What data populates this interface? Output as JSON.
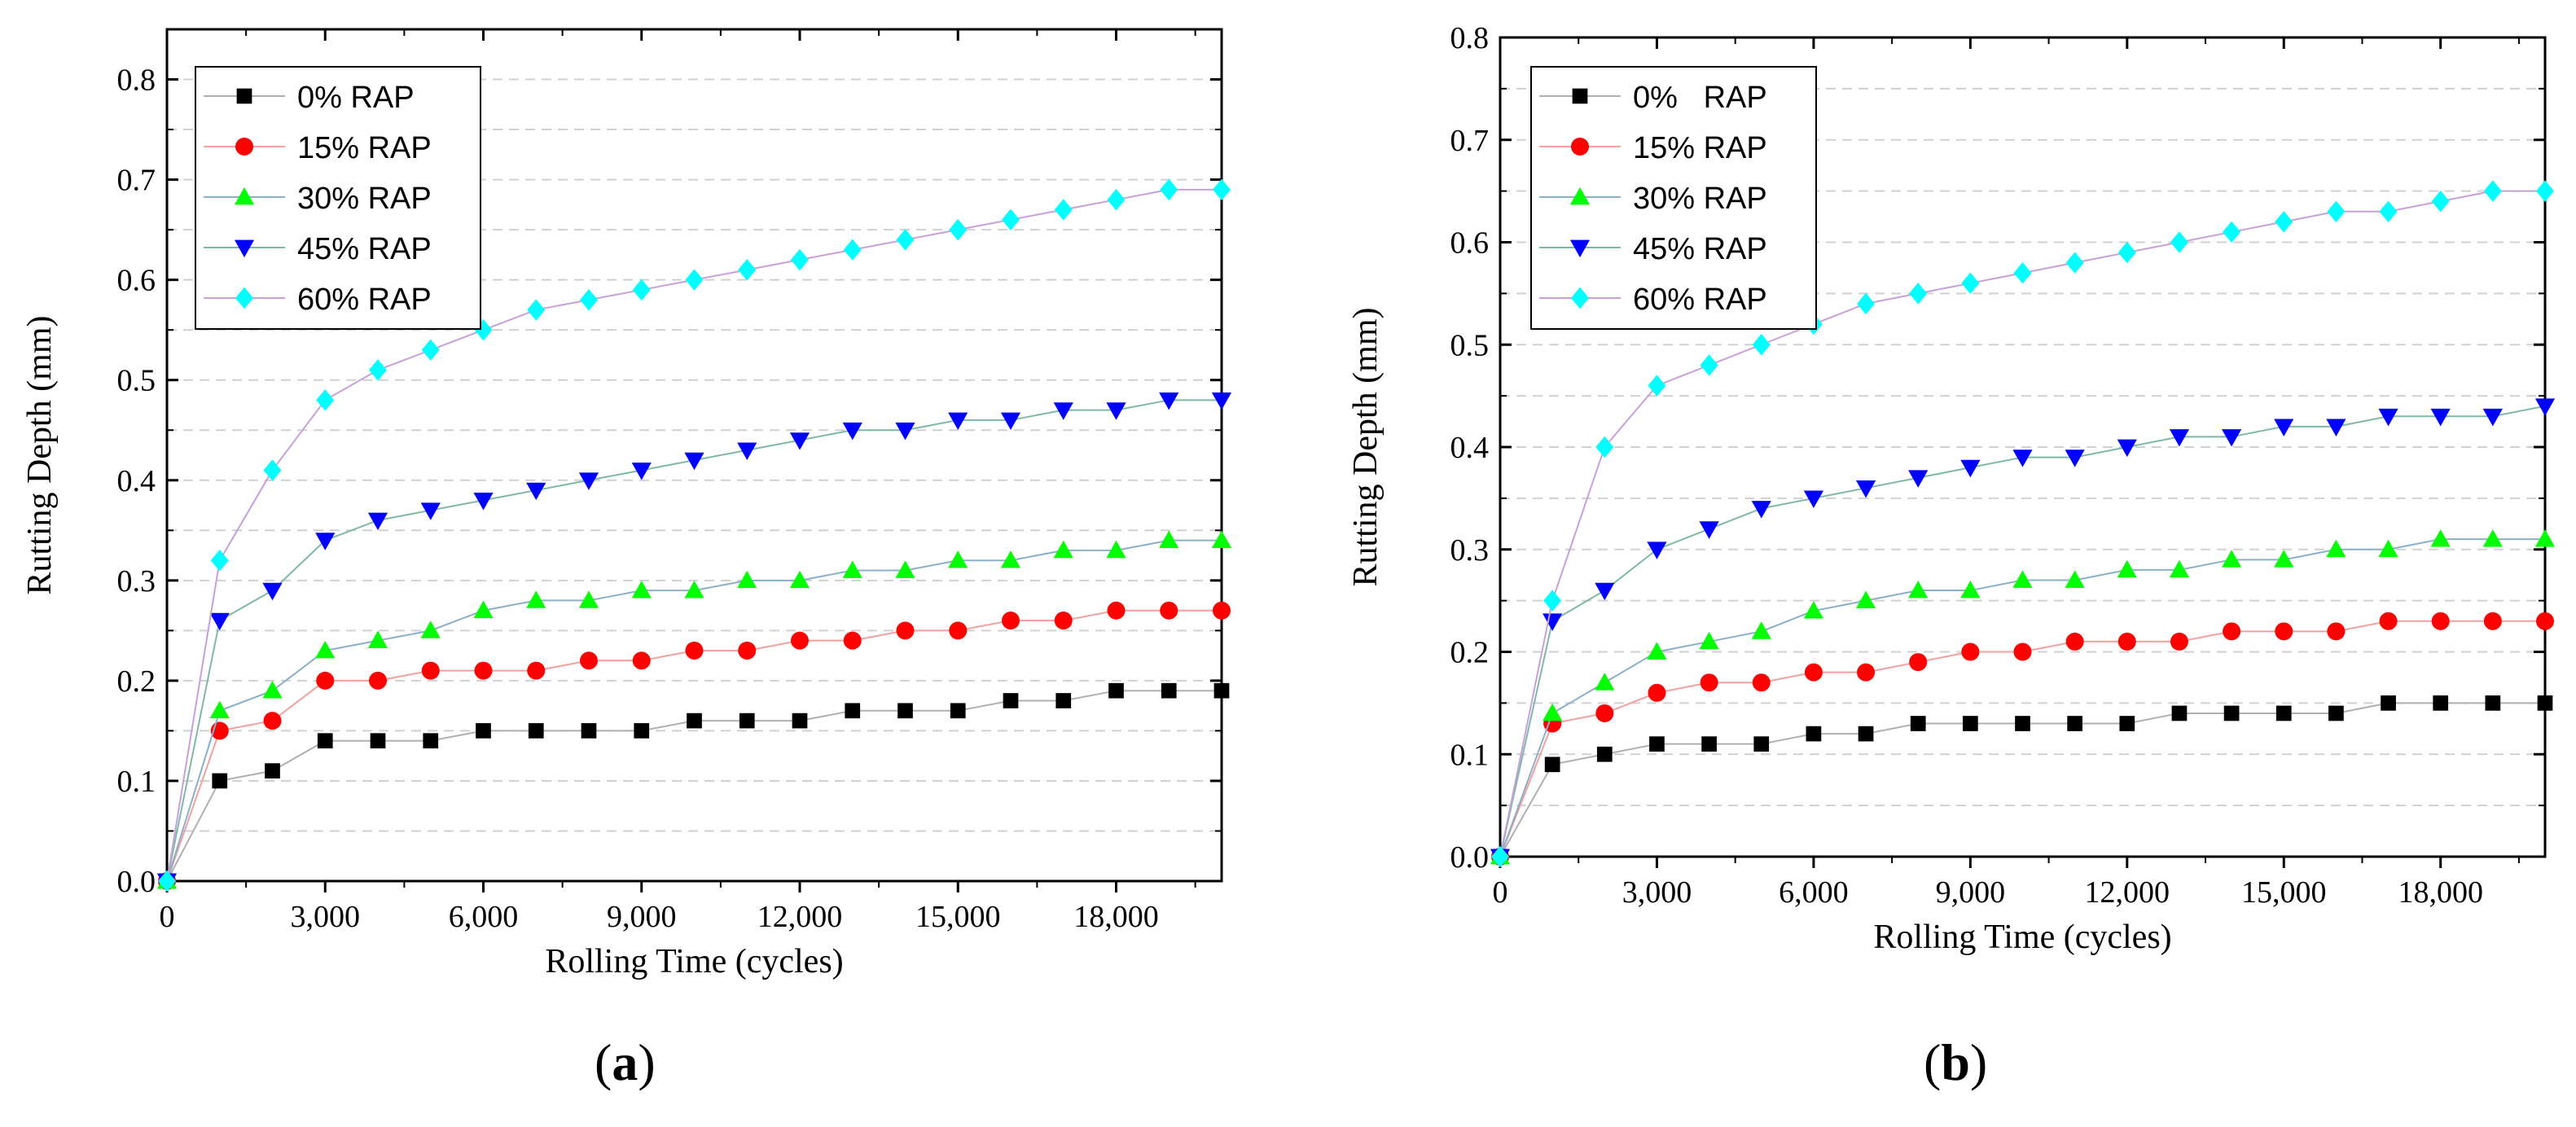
{
  "chart_data": [
    {
      "panel_label": "a",
      "type": "line",
      "xlabel": "Rolling Time (cycles)",
      "ylabel": "Rutting Depth (mm)",
      "xlim": [
        0,
        20000
      ],
      "ylim": [
        0,
        0.85
      ],
      "x_ticks": [
        0,
        3000,
        6000,
        9000,
        12000,
        15000,
        18000
      ],
      "x_tick_labels": [
        "0",
        "3,000",
        "6,000",
        "9,000",
        "12,000",
        "15,000",
        "18,000"
      ],
      "y_ticks": [
        0.0,
        0.1,
        0.2,
        0.3,
        0.4,
        0.5,
        0.6,
        0.7,
        0.8
      ],
      "y_tick_labels": [
        "0.0",
        "0.1",
        "0.2",
        "0.3",
        "0.4",
        "0.5",
        "0.6",
        "0.7",
        "0.8"
      ],
      "grid": "horizontal-dashed",
      "legend_position": "top-left",
      "x": [
        0,
        1000,
        2000,
        3000,
        4000,
        5000,
        6000,
        7000,
        8000,
        9000,
        10000,
        11000,
        12000,
        13000,
        14000,
        15000,
        16000,
        17000,
        18000,
        19000,
        20000
      ],
      "series": [
        {
          "name": "0% RAP",
          "marker": "square",
          "color": "#000000",
          "line_color": "#b0b0b0",
          "values": [
            0,
            0.1,
            0.11,
            0.14,
            0.14,
            0.14,
            0.15,
            0.15,
            0.15,
            0.15,
            0.16,
            0.16,
            0.16,
            0.17,
            0.17,
            0.17,
            0.18,
            0.18,
            0.19,
            0.19,
            0.19
          ]
        },
        {
          "name": "15% RAP",
          "marker": "circle",
          "color": "#ff0000",
          "line_color": "#f2a0a0",
          "values": [
            0,
            0.15,
            0.16,
            0.2,
            0.2,
            0.21,
            0.21,
            0.21,
            0.22,
            0.22,
            0.23,
            0.23,
            0.24,
            0.24,
            0.25,
            0.25,
            0.26,
            0.26,
            0.27,
            0.27,
            0.27
          ]
        },
        {
          "name": "30% RAP",
          "marker": "triangle-up",
          "color": "#00ff00",
          "line_color": "#8ab0c8",
          "values": [
            0,
            0.17,
            0.19,
            0.23,
            0.24,
            0.25,
            0.27,
            0.28,
            0.28,
            0.29,
            0.29,
            0.3,
            0.3,
            0.31,
            0.31,
            0.32,
            0.32,
            0.33,
            0.33,
            0.34,
            0.34
          ]
        },
        {
          "name": "45% RAP",
          "marker": "triangle-down",
          "color": "#0000ff",
          "line_color": "#7fb8a8",
          "values": [
            0,
            0.26,
            0.29,
            0.34,
            0.36,
            0.37,
            0.38,
            0.39,
            0.4,
            0.41,
            0.42,
            0.43,
            0.44,
            0.45,
            0.45,
            0.46,
            0.46,
            0.47,
            0.47,
            0.48,
            0.48
          ]
        },
        {
          "name": "60% RAP",
          "marker": "diamond",
          "color": "#00ffff",
          "line_color": "#c8a0d8",
          "values": [
            0,
            0.32,
            0.41,
            0.48,
            0.51,
            0.53,
            0.55,
            0.57,
            0.58,
            0.59,
            0.6,
            0.61,
            0.62,
            0.63,
            0.64,
            0.65,
            0.66,
            0.67,
            0.68,
            0.69,
            0.69
          ]
        }
      ]
    },
    {
      "panel_label": "b",
      "type": "line",
      "xlabel": "Rolling Time (cycles)",
      "ylabel": "Rutting Depth (mm)",
      "xlim": [
        0,
        20000
      ],
      "ylim": [
        0,
        0.8
      ],
      "x_ticks": [
        0,
        3000,
        6000,
        9000,
        12000,
        15000,
        18000
      ],
      "x_tick_labels": [
        "0",
        "3,000",
        "6,000",
        "9,000",
        "12,000",
        "15,000",
        "18,000"
      ],
      "y_ticks": [
        0.0,
        0.1,
        0.2,
        0.3,
        0.4,
        0.5,
        0.6,
        0.7,
        0.8
      ],
      "y_tick_labels": [
        "0.0",
        "0.1",
        "0.2",
        "0.3",
        "0.4",
        "0.5",
        "0.6",
        "0.7",
        "0.8"
      ],
      "grid": "horizontal-dashed",
      "legend_position": "top-left",
      "x": [
        0,
        1000,
        2000,
        3000,
        4000,
        5000,
        6000,
        7000,
        8000,
        9000,
        10000,
        11000,
        12000,
        13000,
        14000,
        15000,
        16000,
        17000,
        18000,
        19000,
        20000
      ],
      "series": [
        {
          "name": "0%   RAP",
          "marker": "square",
          "color": "#000000",
          "line_color": "#b0b0b0",
          "values": [
            0,
            0.09,
            0.1,
            0.11,
            0.11,
            0.11,
            0.12,
            0.12,
            0.13,
            0.13,
            0.13,
            0.13,
            0.13,
            0.14,
            0.14,
            0.14,
            0.14,
            0.15,
            0.15,
            0.15,
            0.15
          ]
        },
        {
          "name": "15% RAP",
          "marker": "circle",
          "color": "#ff0000",
          "line_color": "#f2a0a0",
          "values": [
            0,
            0.13,
            0.14,
            0.16,
            0.17,
            0.17,
            0.18,
            0.18,
            0.19,
            0.2,
            0.2,
            0.21,
            0.21,
            0.21,
            0.22,
            0.22,
            0.22,
            0.23,
            0.23,
            0.23,
            0.23
          ]
        },
        {
          "name": "30% RAP",
          "marker": "triangle-up",
          "color": "#00ff00",
          "line_color": "#8ab0c8",
          "values": [
            0,
            0.14,
            0.17,
            0.2,
            0.21,
            0.22,
            0.24,
            0.25,
            0.26,
            0.26,
            0.27,
            0.27,
            0.28,
            0.28,
            0.29,
            0.29,
            0.3,
            0.3,
            0.31,
            0.31,
            0.31
          ]
        },
        {
          "name": "45% RAP",
          "marker": "triangle-down",
          "color": "#0000ff",
          "line_color": "#7fb8a8",
          "values": [
            0,
            0.23,
            0.26,
            0.3,
            0.32,
            0.34,
            0.35,
            0.36,
            0.37,
            0.38,
            0.39,
            0.39,
            0.4,
            0.41,
            0.41,
            0.42,
            0.42,
            0.43,
            0.43,
            0.43,
            0.44
          ]
        },
        {
          "name": "60% RAP",
          "marker": "diamond",
          "color": "#00ffff",
          "line_color": "#c8a0d8",
          "values": [
            0,
            0.25,
            0.4,
            0.46,
            0.48,
            0.5,
            0.52,
            0.54,
            0.55,
            0.56,
            0.57,
            0.58,
            0.59,
            0.6,
            0.61,
            0.62,
            0.63,
            0.63,
            0.64,
            0.65,
            0.65
          ]
        }
      ]
    }
  ]
}
